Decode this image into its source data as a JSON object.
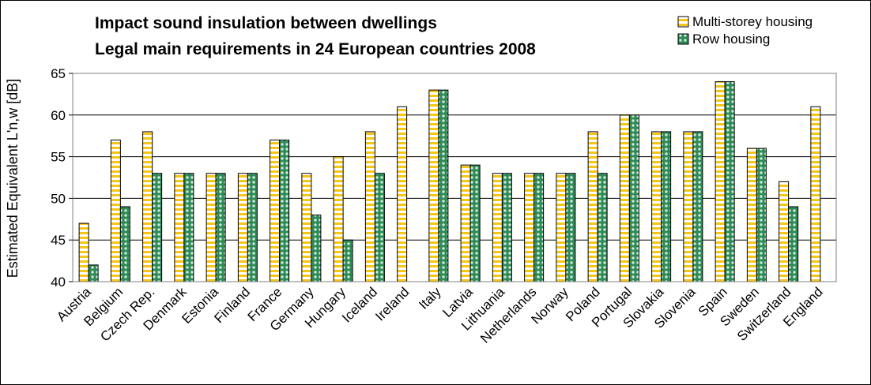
{
  "chart_data": {
    "type": "bar",
    "title": "Impact sound insulation between dwellings",
    "subtitle": "Legal main requirements in 24 European countries 2008",
    "ylabel": "Estimated Equivalent L'n,w [dB]",
    "xlabel": "",
    "ylim": [
      40,
      65
    ],
    "yticks": [
      40,
      45,
      50,
      55,
      60,
      65
    ],
    "grid": true,
    "legend_position": "top-right",
    "categories": [
      "Austria",
      "Belgium",
      "Czech Rep.",
      "Denmark",
      "Estonia",
      "Finland",
      "France",
      "Germany",
      "Hungary",
      "Iceland",
      "Ireland",
      "Italy",
      "Latvia",
      "Lithuania",
      "Netherlands",
      "Norway",
      "Poland",
      "Portugal",
      "Slovakia",
      "Slovenia",
      "Spain",
      "Sweden",
      "Switzerland",
      "England"
    ],
    "series": [
      {
        "name": "Multi-storey housing",
        "color": "#F5C518",
        "pattern": "horizontal-stripes",
        "values": [
          47,
          57,
          58,
          53,
          53,
          53,
          57,
          53,
          55,
          58,
          61,
          63,
          54,
          53,
          53,
          53,
          58,
          60,
          58,
          58,
          64,
          56,
          52,
          61
        ]
      },
      {
        "name": "Row housing",
        "color": "#2E8B57",
        "pattern": "dots",
        "values": [
          42,
          49,
          53,
          53,
          53,
          53,
          57,
          48,
          45,
          53,
          null,
          63,
          54,
          53,
          53,
          53,
          53,
          60,
          58,
          58,
          64,
          56,
          49,
          null
        ]
      }
    ]
  }
}
